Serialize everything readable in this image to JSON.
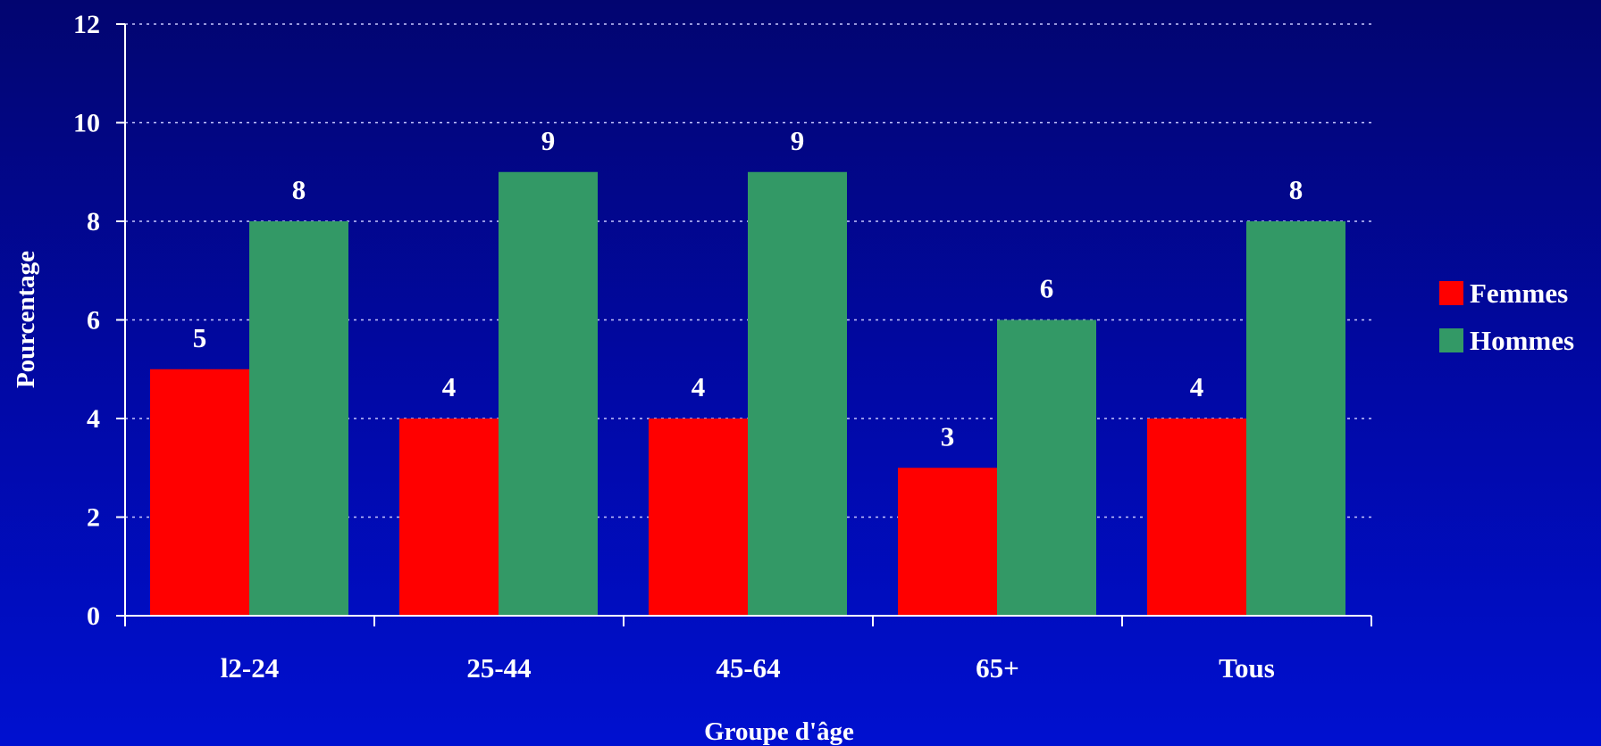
{
  "chart_data": {
    "type": "bar",
    "categories": [
      "l2-24",
      "25-44",
      "45-64",
      "65+",
      "Tous"
    ],
    "series": [
      {
        "name": "Femmes",
        "values": [
          5,
          4,
          4,
          3,
          4
        ],
        "color": "#ff0000"
      },
      {
        "name": "Hommes",
        "values": [
          8,
          9,
          9,
          6,
          8
        ],
        "color": "#339966"
      }
    ],
    "xlabel": "Groupe d'âge",
    "ylabel": "Pourcentage",
    "ylim": [
      0,
      12
    ],
    "yticks": [
      "0",
      "2",
      "4",
      "6",
      "8",
      "10",
      "12"
    ],
    "grid": true,
    "legend": "right",
    "axis_color": "#ffffff",
    "grid_color": "#c8c8ff"
  }
}
